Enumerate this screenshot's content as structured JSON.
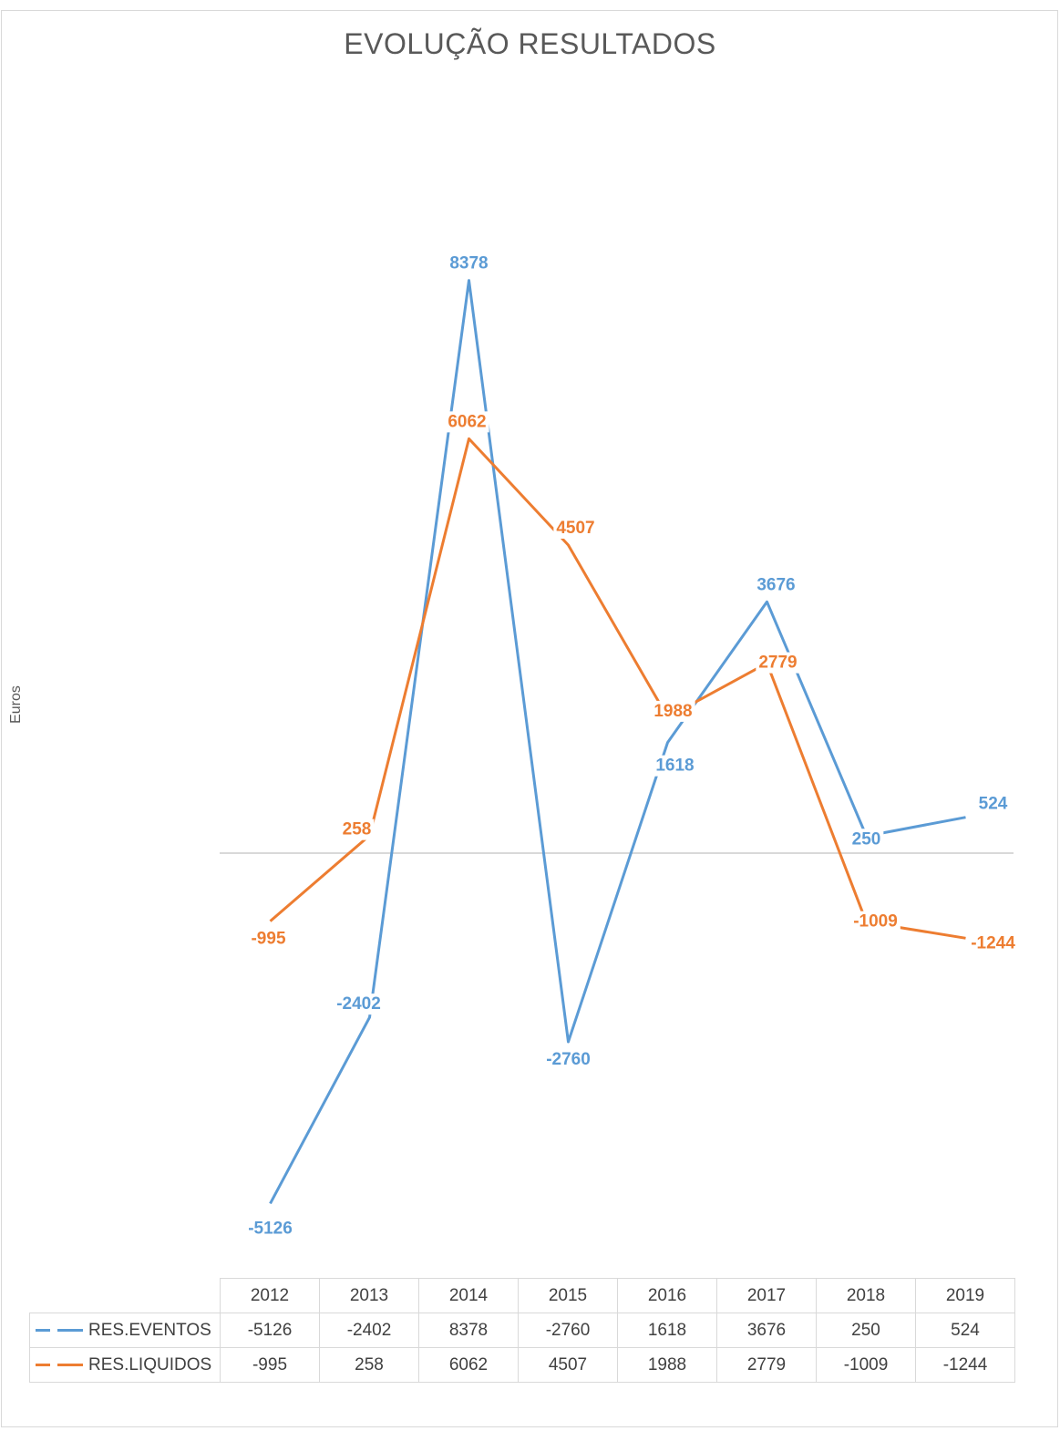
{
  "chart_data": {
    "type": "line",
    "title": "EVOLUÇÃO RESULTADOS",
    "xlabel": "",
    "ylabel": "Euros",
    "categories": [
      "2012",
      "2013",
      "2014",
      "2015",
      "2016",
      "2017",
      "2018",
      "2019"
    ],
    "series": [
      {
        "name": "RES.EVENTOS",
        "color": "#5b9bd5",
        "values": [
          -5126,
          -2402,
          8378,
          -2760,
          1618,
          3676,
          250,
          524
        ]
      },
      {
        "name": "RES.LIQUIDOS",
        "color": "#ed7d31",
        "values": [
          -995,
          258,
          6062,
          4507,
          1988,
          2779,
          -1009,
          -1244
        ]
      }
    ],
    "ylim": [
      -6000,
      10000
    ],
    "grid": false,
    "legend": "data-table-below"
  }
}
